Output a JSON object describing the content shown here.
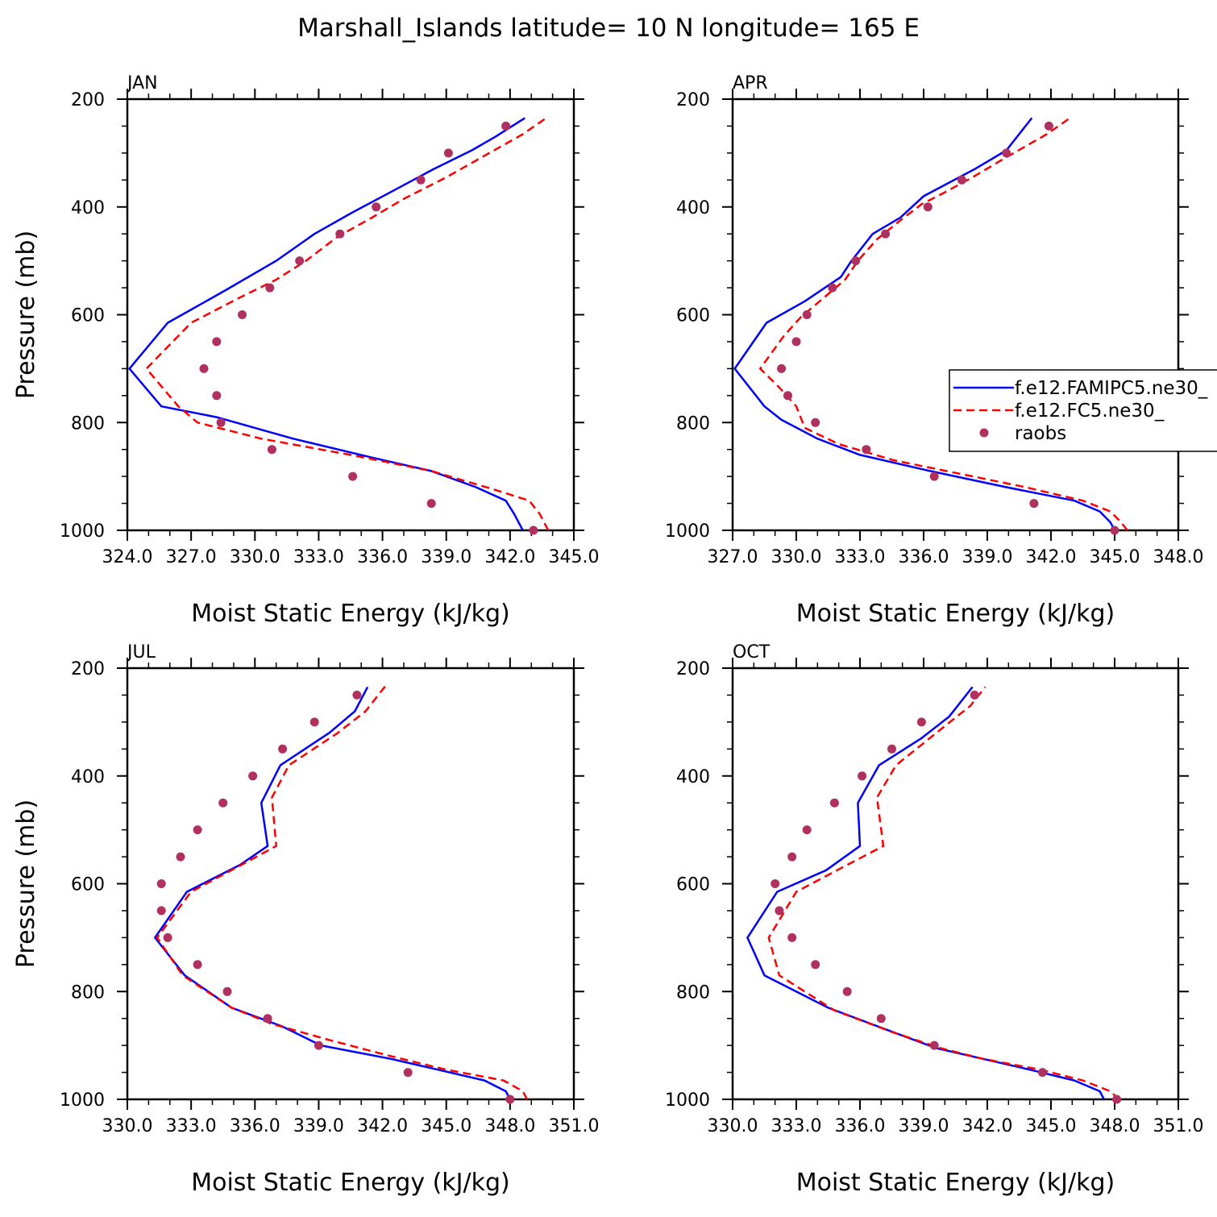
{
  "title": "Marshall_Islands  latitude= 10 N longitude= 165 E",
  "chart_data": [
    {
      "type": "line",
      "panel": "JAN",
      "xlabel": "Moist Static Energy (kJ/kg)",
      "ylabel": "Pressure (mb)",
      "xlim": [
        324.0,
        345.0
      ],
      "ylim": [
        1000,
        200
      ],
      "xticks": [
        "324.0",
        "327.0",
        "330.0",
        "333.0",
        "336.0",
        "339.0",
        "342.0",
        "345.0"
      ],
      "yticks": [
        "200",
        "400",
        "600",
        "800",
        "1000"
      ],
      "series": [
        {
          "name": "f.e12.FAMIPC5.ne30_",
          "style": "solid",
          "color": "#0000ff",
          "points": [
            [
              342.6,
              1000
            ],
            [
              342.2,
              970
            ],
            [
              341.8,
              945
            ],
            [
              340.4,
              920
            ],
            [
              338.3,
              890
            ],
            [
              335.5,
              865
            ],
            [
              331.8,
              830
            ],
            [
              328.2,
              790
            ],
            [
              325.6,
              770
            ],
            [
              324.1,
              700
            ],
            [
              325.9,
              615
            ],
            [
              328.6,
              555
            ],
            [
              331.0,
              500
            ],
            [
              332.8,
              450
            ],
            [
              334.6,
              410
            ],
            [
              336.5,
              370
            ],
            [
              338.4,
              330
            ],
            [
              340.2,
              295
            ],
            [
              341.3,
              270
            ],
            [
              342.7,
              235
            ]
          ]
        },
        {
          "name": "f.e12.FC5.ne30_",
          "style": "dashed",
          "color": "#ff0000",
          "points": [
            [
              343.8,
              1000
            ],
            [
              343.4,
              970
            ],
            [
              342.9,
              945
            ],
            [
              341.3,
              925
            ],
            [
              338.3,
              890
            ],
            [
              334.5,
              860
            ],
            [
              330.3,
              830
            ],
            [
              327.3,
              800
            ],
            [
              326.4,
              770
            ],
            [
              324.9,
              700
            ],
            [
              327.0,
              615
            ],
            [
              329.2,
              570
            ],
            [
              331.0,
              535
            ],
            [
              332.4,
              500
            ],
            [
              333.9,
              455
            ],
            [
              335.5,
              420
            ],
            [
              337.0,
              385
            ],
            [
              339.0,
              345
            ],
            [
              340.8,
              305
            ],
            [
              342.6,
              265
            ],
            [
              343.7,
              235
            ]
          ]
        }
      ],
      "raobs": {
        "name": "raobs",
        "color": "#b03060",
        "points": [
          [
            343.1,
            1000
          ],
          [
            338.3,
            950
          ],
          [
            334.6,
            900
          ],
          [
            330.8,
            850
          ],
          [
            328.4,
            800
          ],
          [
            328.2,
            750
          ],
          [
            327.6,
            700
          ],
          [
            328.2,
            650
          ],
          [
            329.4,
            600
          ],
          [
            330.7,
            550
          ],
          [
            332.1,
            500
          ],
          [
            334.0,
            450
          ],
          [
            335.7,
            400
          ],
          [
            337.8,
            350
          ],
          [
            339.1,
            300
          ],
          [
            341.8,
            250
          ]
        ]
      }
    },
    {
      "type": "line",
      "panel": "APR",
      "xlabel": "Moist Static Energy (kJ/kg)",
      "ylabel": "",
      "xlim": [
        327.0,
        348.0
      ],
      "ylim": [
        1000,
        200
      ],
      "xticks": [
        "327.0",
        "330.0",
        "333.0",
        "336.0",
        "339.0",
        "342.0",
        "345.0",
        "348.0"
      ],
      "yticks": [
        "200",
        "400",
        "600",
        "800",
        "1000"
      ],
      "series": [
        {
          "name": "f.e12.FAMIPC5.ne30_",
          "style": "solid",
          "color": "#0000ff",
          "points": [
            [
              345.0,
              1000
            ],
            [
              344.8,
              985
            ],
            [
              344.3,
              965
            ],
            [
              343.1,
              945
            ],
            [
              339.9,
              920
            ],
            [
              336.3,
              890
            ],
            [
              333.0,
              860
            ],
            [
              331.0,
              830
            ],
            [
              329.3,
              795
            ],
            [
              328.5,
              770
            ],
            [
              327.1,
              700
            ],
            [
              328.6,
              615
            ],
            [
              330.4,
              575
            ],
            [
              332.1,
              530
            ],
            [
              332.6,
              500
            ],
            [
              333.6,
              450
            ],
            [
              334.9,
              420
            ],
            [
              336.0,
              380
            ],
            [
              338.4,
              330
            ],
            [
              339.9,
              295
            ],
            [
              341.1,
              235
            ]
          ]
        },
        {
          "name": "f.e12.FC5.ne30_",
          "style": "dashed",
          "color": "#ff0000",
          "points": [
            [
              345.6,
              1000
            ],
            [
              345.3,
              985
            ],
            [
              344.8,
              965
            ],
            [
              343.5,
              945
            ],
            [
              340.8,
              920
            ],
            [
              337.7,
              895
            ],
            [
              334.6,
              870
            ],
            [
              332.0,
              840
            ],
            [
              330.4,
              810
            ],
            [
              330.0,
              770
            ],
            [
              329.2,
              735
            ],
            [
              328.3,
              700
            ],
            [
              329.4,
              640
            ],
            [
              330.2,
              605
            ],
            [
              331.1,
              575
            ],
            [
              332.3,
              535
            ],
            [
              332.9,
              500
            ],
            [
              333.8,
              460
            ],
            [
              334.9,
              425
            ],
            [
              335.9,
              395
            ],
            [
              336.9,
              375
            ],
            [
              338.3,
              345
            ],
            [
              339.8,
              310
            ],
            [
              341.8,
              265
            ],
            [
              342.9,
              235
            ]
          ]
        }
      ],
      "raobs": {
        "name": "raobs",
        "color": "#b03060",
        "points": [
          [
            345.0,
            1000
          ],
          [
            341.2,
            950
          ],
          [
            336.5,
            900
          ],
          [
            333.3,
            850
          ],
          [
            330.9,
            800
          ],
          [
            329.6,
            750
          ],
          [
            329.3,
            700
          ],
          [
            330.0,
            650
          ],
          [
            330.5,
            600
          ],
          [
            331.7,
            550
          ],
          [
            332.8,
            500
          ],
          [
            334.2,
            450
          ],
          [
            336.2,
            400
          ],
          [
            337.8,
            350
          ],
          [
            339.9,
            300
          ],
          [
            341.9,
            250
          ]
        ]
      }
    },
    {
      "type": "line",
      "panel": "JUL",
      "xlabel": "Moist Static Energy (kJ/kg)",
      "ylabel": "Pressure (mb)",
      "xlim": [
        330.0,
        351.0
      ],
      "ylim": [
        1000,
        200
      ],
      "xticks": [
        "330.0",
        "333.0",
        "336.0",
        "339.0",
        "342.0",
        "345.0",
        "348.0",
        "351.0"
      ],
      "yticks": [
        "200",
        "400",
        "600",
        "800",
        "1000"
      ],
      "series": [
        {
          "name": "f.e12.FAMIPC5.ne30_",
          "style": "solid",
          "color": "#0000ff",
          "points": [
            [
              348.0,
              1000
            ],
            [
              347.8,
              985
            ],
            [
              346.8,
              965
            ],
            [
              344.6,
              945
            ],
            [
              342.4,
              925
            ],
            [
              339.1,
              900
            ],
            [
              337.3,
              865
            ],
            [
              334.9,
              830
            ],
            [
              332.7,
              770
            ],
            [
              331.3,
              700
            ],
            [
              332.8,
              615
            ],
            [
              335.3,
              565
            ],
            [
              336.6,
              530
            ],
            [
              336.3,
              450
            ],
            [
              337.2,
              380
            ],
            [
              339.5,
              320
            ],
            [
              340.7,
              280
            ],
            [
              341.3,
              235
            ]
          ]
        },
        {
          "name": "f.e12.FC5.ne30_",
          "style": "dashed",
          "color": "#ff0000",
          "points": [
            [
              348.8,
              1000
            ],
            [
              348.6,
              985
            ],
            [
              347.7,
              965
            ],
            [
              345.0,
              945
            ],
            [
              342.4,
              920
            ],
            [
              339.5,
              890
            ],
            [
              336.8,
              860
            ],
            [
              334.9,
              830
            ],
            [
              332.6,
              770
            ],
            [
              331.4,
              700
            ],
            [
              333.0,
              615
            ],
            [
              335.6,
              560
            ],
            [
              337.0,
              530
            ],
            [
              336.8,
              440
            ],
            [
              337.6,
              380
            ],
            [
              339.9,
              320
            ],
            [
              341.2,
              280
            ],
            [
              342.2,
              230
            ]
          ]
        }
      ],
      "raobs": {
        "name": "raobs",
        "color": "#b03060",
        "points": [
          [
            348.0,
            1000
          ],
          [
            343.2,
            950
          ],
          [
            339.0,
            900
          ],
          [
            336.6,
            850
          ],
          [
            334.7,
            800
          ],
          [
            333.3,
            750
          ],
          [
            331.9,
            700
          ],
          [
            331.6,
            650
          ],
          [
            331.6,
            600
          ],
          [
            332.5,
            550
          ],
          [
            333.3,
            500
          ],
          [
            334.5,
            450
          ],
          [
            335.9,
            400
          ],
          [
            337.3,
            350
          ],
          [
            338.8,
            300
          ],
          [
            340.8,
            250
          ]
        ]
      }
    },
    {
      "type": "line",
      "panel": "OCT",
      "xlabel": "Moist Static Energy (kJ/kg)",
      "ylabel": "",
      "xlim": [
        330.0,
        351.0
      ],
      "ylim": [
        1000,
        200
      ],
      "xticks": [
        "330.0",
        "333.0",
        "336.0",
        "339.0",
        "342.0",
        "345.0",
        "348.0",
        "351.0"
      ],
      "yticks": [
        "200",
        "400",
        "600",
        "800",
        "1000"
      ],
      "series": [
        {
          "name": "f.e12.FAMIPC5.ne30_",
          "style": "solid",
          "color": "#0000ff",
          "points": [
            [
              347.5,
              1000
            ],
            [
              347.3,
              985
            ],
            [
              346.1,
              965
            ],
            [
              344.0,
              945
            ],
            [
              341.8,
              925
            ],
            [
              339.6,
              905
            ],
            [
              337.2,
              870
            ],
            [
              334.5,
              830
            ],
            [
              331.5,
              770
            ],
            [
              330.7,
              700
            ],
            [
              332.1,
              615
            ],
            [
              334.4,
              575
            ],
            [
              336.0,
              530
            ],
            [
              335.9,
              450
            ],
            [
              336.9,
              380
            ],
            [
              338.9,
              330
            ],
            [
              340.2,
              290
            ],
            [
              341.3,
              235
            ]
          ]
        },
        {
          "name": "f.e12.FC5.ne30_",
          "style": "dashed",
          "color": "#ff0000",
          "points": [
            [
              348.2,
              1000
            ],
            [
              347.8,
              985
            ],
            [
              346.5,
              965
            ],
            [
              344.5,
              945
            ],
            [
              341.8,
              925
            ],
            [
              339.8,
              905
            ],
            [
              337.5,
              875
            ],
            [
              334.8,
              835
            ],
            [
              332.2,
              770
            ],
            [
              331.7,
              700
            ],
            [
              333.0,
              615
            ],
            [
              335.4,
              565
            ],
            [
              337.1,
              530
            ],
            [
              336.8,
              440
            ],
            [
              337.7,
              380
            ],
            [
              339.6,
              320
            ],
            [
              341.2,
              270
            ],
            [
              341.9,
              235
            ]
          ]
        }
      ],
      "raobs": {
        "name": "raobs",
        "color": "#b03060",
        "points": [
          [
            348.1,
            1000
          ],
          [
            344.6,
            950
          ],
          [
            339.5,
            900
          ],
          [
            337.0,
            850
          ],
          [
            335.4,
            800
          ],
          [
            333.9,
            750
          ],
          [
            332.8,
            700
          ],
          [
            332.2,
            650
          ],
          [
            332.0,
            600
          ],
          [
            332.8,
            550
          ],
          [
            333.5,
            500
          ],
          [
            334.8,
            450
          ],
          [
            336.1,
            400
          ],
          [
            337.5,
            350
          ],
          [
            338.9,
            300
          ],
          [
            341.4,
            250
          ]
        ]
      }
    }
  ],
  "legend": {
    "entries": [
      {
        "label": "f.e12.FAMIPC5.ne30_",
        "style": "solid",
        "color": "#0000ff"
      },
      {
        "label": "f.e12.FC5.ne30_",
        "style": "dashed",
        "color": "#ff0000"
      },
      {
        "label": "raobs",
        "style": "marker",
        "color": "#b03060"
      }
    ]
  }
}
